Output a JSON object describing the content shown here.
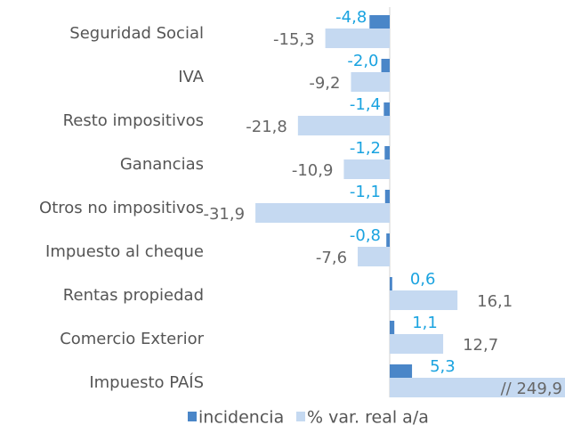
{
  "chart_data": {
    "type": "hbar",
    "categories": [
      "Seguridad Social",
      "IVA",
      "Resto impositivos",
      "Ganancias",
      "Otros no impositivos",
      "Impuesto al cheque",
      "Rentas propiedad",
      "Comercio Exterior",
      "Impuesto PAÍS"
    ],
    "series": [
      {
        "name": "incidencia",
        "color": "#4a86c8",
        "values": [
          -4.8,
          -2.0,
          -1.4,
          -1.2,
          -1.1,
          -0.8,
          0.6,
          1.1,
          5.3
        ],
        "value_labels": [
          "-4,8",
          "-2,0",
          "-1,4",
          "-1,2",
          "-1,1",
          "-0,8",
          "0,6",
          "1,1",
          "5,3"
        ]
      },
      {
        "name": "% var. real a/a",
        "color": "#c5d9f1",
        "values": [
          -15.3,
          -9.2,
          -21.8,
          -10.9,
          -31.9,
          -7.6,
          16.1,
          12.7,
          249.9
        ],
        "value_labels": [
          "-15,3",
          "-9,2",
          "-21,8",
          "-10,9",
          "-31,9",
          "-7,6",
          "16,1",
          "12,7",
          "// 249,9"
        ]
      }
    ],
    "xlim": [
      -32,
      41.6
    ]
  }
}
